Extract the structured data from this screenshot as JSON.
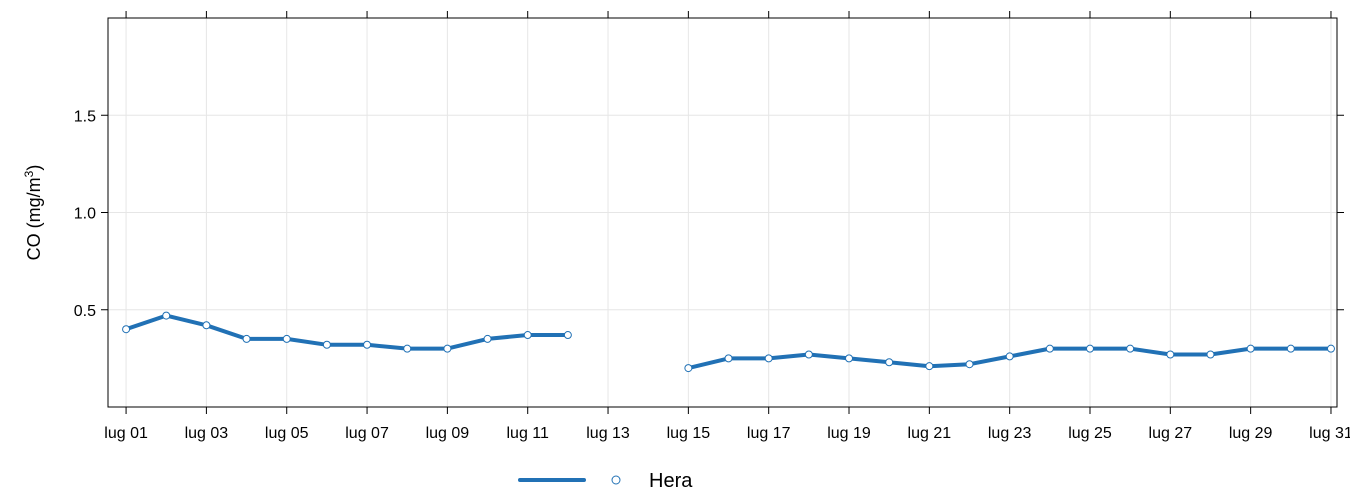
{
  "chart_data": {
    "type": "line",
    "ylabel": "CO (mg/m",
    "ylabel_sup": "3",
    "ylabel_close": ")",
    "ylim": [
      0,
      2
    ],
    "yticks": [
      "0.5",
      "1.0",
      "1.5"
    ],
    "ytick_values": [
      0.5,
      1.0,
      1.5
    ],
    "xticks": [
      "lug 01",
      "lug 03",
      "lug 05",
      "lug 07",
      "lug 09",
      "lug 11",
      "lug 13",
      "lug 15",
      "lug 17",
      "lug 19",
      "lug 21",
      "lug 23",
      "lug 25",
      "lug 27",
      "lug 29",
      "lug 31"
    ],
    "xtick_days": [
      1,
      3,
      5,
      7,
      9,
      11,
      13,
      15,
      17,
      19,
      21,
      23,
      25,
      27,
      29,
      31
    ],
    "xlim_days": [
      0.55,
      31.15
    ],
    "grid": true,
    "legend_position": "bottom",
    "series": [
      {
        "name": "Hera",
        "color": "#2171b5",
        "x": [
          1,
          2,
          3,
          4,
          5,
          6,
          7,
          8,
          9,
          10,
          11,
          12,
          13,
          14,
          15,
          16,
          17,
          18,
          19,
          20,
          21,
          22,
          23,
          24,
          25,
          26,
          27,
          28,
          29,
          30,
          31
        ],
        "values": [
          0.4,
          0.47,
          0.42,
          0.35,
          0.35,
          0.32,
          0.32,
          0.3,
          0.3,
          0.35,
          0.37,
          0.37,
          null,
          null,
          0.2,
          0.25,
          0.25,
          0.27,
          0.25,
          0.23,
          0.21,
          0.22,
          0.26,
          0.3,
          0.3,
          0.3,
          0.27,
          0.27,
          0.3,
          0.3,
          0.3
        ]
      }
    ]
  }
}
